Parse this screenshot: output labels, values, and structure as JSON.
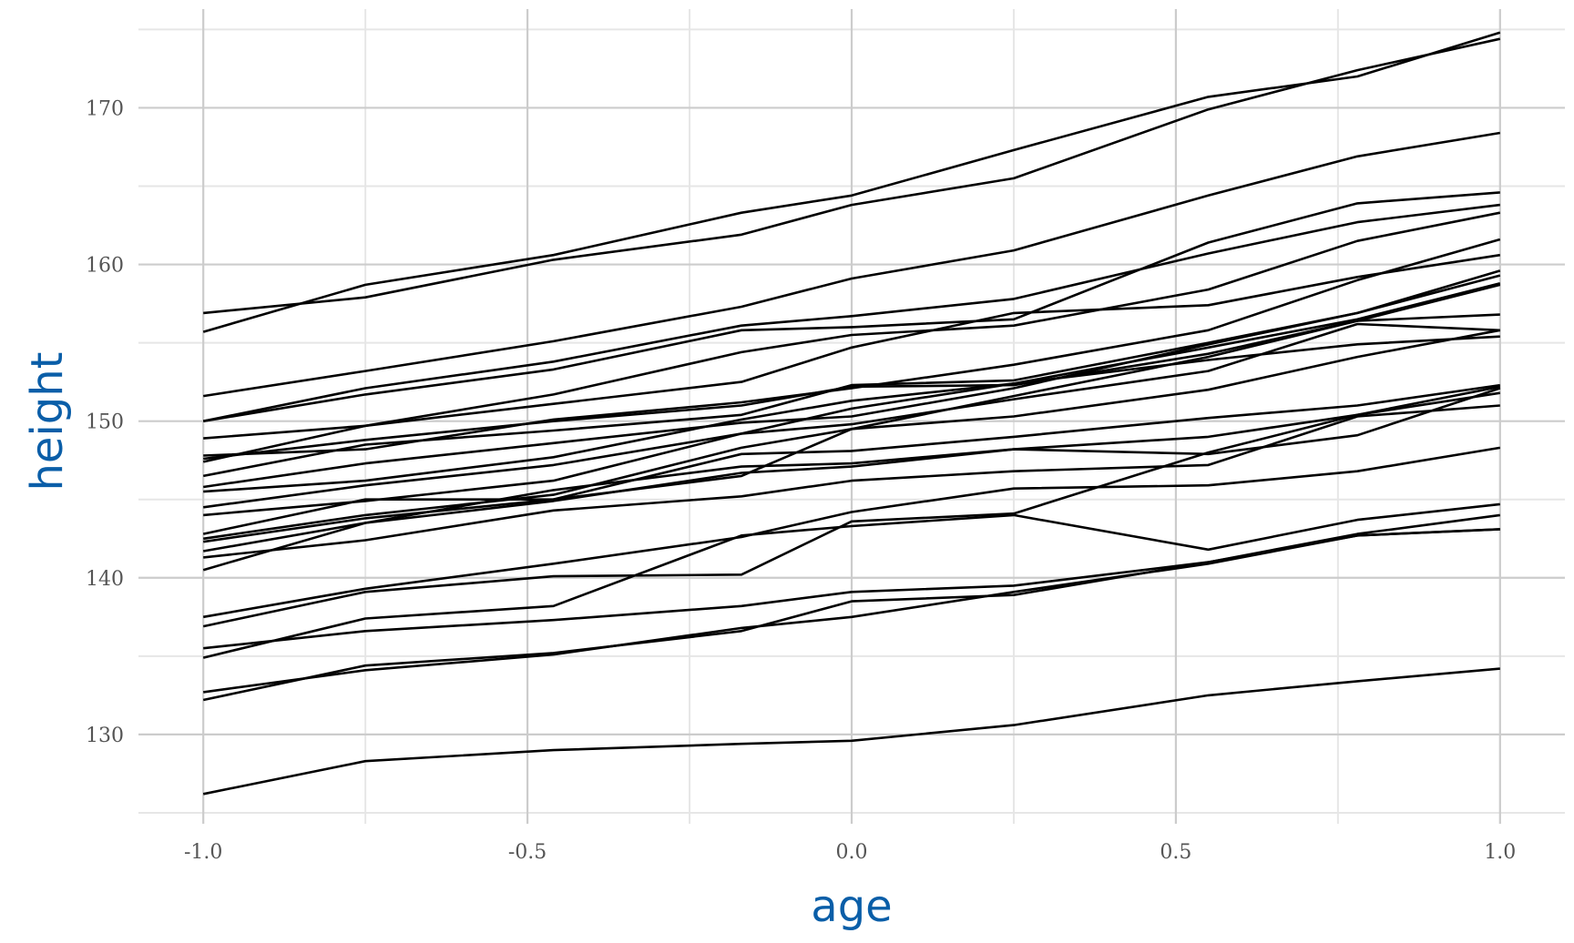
{
  "chart_data": {
    "type": "line",
    "xlabel": "age",
    "ylabel": "height",
    "xlim": [
      -1.1,
      1.1
    ],
    "ylim": [
      124.3,
      176.3
    ],
    "x_ticks": [
      -1.0,
      -0.5,
      0.0,
      0.5,
      1.0
    ],
    "x_tick_labels": [
      "-1.0",
      "-0.5",
      "0.0",
      "0.5",
      "1.0"
    ],
    "y_ticks": [
      130,
      140,
      150,
      160,
      170
    ],
    "y_tick_labels": [
      "130",
      "140",
      "150",
      "160",
      "170"
    ],
    "grid": true,
    "legend": "none",
    "colors": {
      "line": "#000000",
      "axis_title": "#0a5ea8",
      "tick_label": "#555555",
      "grid_major": "#cccccc",
      "grid_minor": "#e6e6e6"
    },
    "series": [
      {
        "x": [
          -1.0,
          -0.75,
          -0.46,
          -0.17,
          0.0,
          0.25,
          0.55,
          0.78,
          1.0
        ],
        "y": [
          156.9,
          157.9,
          160.3,
          161.9,
          163.8,
          165.5,
          169.9,
          172.4,
          174.4
        ]
      },
      {
        "x": [
          -1.0,
          -0.75,
          -0.46,
          -0.17,
          0.0,
          0.25,
          0.55,
          0.78,
          1.0
        ],
        "y": [
          155.7,
          158.7,
          160.6,
          163.3,
          164.4,
          167.3,
          170.7,
          172.0,
          174.8
        ]
      },
      {
        "x": [
          -1.0,
          -0.75,
          -0.46,
          -0.17,
          0.0,
          0.25,
          0.55,
          0.78,
          1.0
        ],
        "y": [
          151.6,
          153.2,
          155.1,
          157.3,
          159.1,
          160.9,
          164.4,
          166.9,
          168.4
        ]
      },
      {
        "x": [
          -1.0,
          -0.75,
          -0.46,
          -0.17,
          0.0,
          0.25,
          0.55,
          0.78,
          1.0
        ],
        "y": [
          150.0,
          152.1,
          153.8,
          156.1,
          156.7,
          157.8,
          160.7,
          162.7,
          163.8
        ]
      },
      {
        "x": [
          -1.0,
          -0.75,
          -0.46,
          -0.17,
          0.0,
          0.25,
          0.55,
          0.78,
          1.0
        ],
        "y": [
          150.0,
          151.7,
          153.3,
          155.8,
          156.0,
          156.5,
          161.4,
          163.9,
          164.6
        ]
      },
      {
        "x": [
          -1.0,
          -0.75,
          -0.46,
          -0.17,
          0.0,
          0.25,
          0.55,
          0.78,
          1.0
        ],
        "y": [
          148.9,
          149.7,
          151.7,
          154.4,
          155.5,
          156.1,
          158.4,
          161.5,
          163.3
        ]
      },
      {
        "x": [
          -1.0,
          -0.75,
          -0.46,
          -0.17,
          0.0,
          0.25,
          0.55,
          0.78,
          1.0
        ],
        "y": [
          147.4,
          149.7,
          151.1,
          152.5,
          154.7,
          156.9,
          157.4,
          159.2,
          160.6
        ]
      },
      {
        "x": [
          -1.0,
          -0.75,
          -0.46,
          -0.17,
          0.0,
          0.25,
          0.55,
          0.78,
          1.0
        ],
        "y": [
          147.8,
          148.2,
          150.1,
          151.2,
          152.1,
          153.6,
          155.8,
          159.0,
          161.6
        ]
      },
      {
        "x": [
          -1.0,
          -0.75,
          -0.46,
          -0.17,
          0.0,
          0.25,
          0.55,
          0.78,
          1.0
        ],
        "y": [
          147.6,
          148.8,
          150.0,
          151.0,
          152.2,
          152.3,
          154.3,
          156.4,
          156.8
        ]
      },
      {
        "x": [
          -1.0,
          -0.75,
          -0.46,
          -0.17,
          0.0,
          0.25,
          0.55,
          0.78,
          1.0
        ],
        "y": [
          146.5,
          148.5,
          149.4,
          150.4,
          152.3,
          152.6,
          155.0,
          156.9,
          159.6
        ]
      },
      {
        "x": [
          -1.0,
          -0.75,
          -0.46,
          -0.17,
          0.0,
          0.25,
          0.55,
          0.78,
          1.0
        ],
        "y": [
          145.8,
          147.3,
          148.6,
          149.9,
          150.3,
          152.1,
          154.9,
          156.9,
          159.3
        ]
      },
      {
        "x": [
          -1.0,
          -0.75,
          -0.46,
          -0.17,
          0.0,
          0.25,
          0.55,
          0.78,
          1.0
        ],
        "y": [
          145.5,
          146.2,
          147.7,
          150.1,
          151.3,
          152.4,
          153.9,
          154.9,
          155.4
        ]
      },
      {
        "x": [
          -1.0,
          -0.75,
          -0.46,
          -0.17,
          0.0,
          0.25,
          0.55,
          0.78,
          1.0
        ],
        "y": [
          144.5,
          145.9,
          147.2,
          149.2,
          149.8,
          151.4,
          153.2,
          156.2,
          155.8
        ]
      },
      {
        "x": [
          -1.0,
          -0.75,
          -0.46,
          -0.17,
          0.0,
          0.25,
          0.55,
          0.78,
          1.0
        ],
        "y": [
          144.0,
          144.9,
          146.2,
          149.2,
          150.8,
          152.4,
          154.7,
          156.5,
          158.8
        ]
      },
      {
        "x": [
          -1.0,
          -0.75,
          -0.46,
          -0.17,
          0.0,
          0.25,
          0.55,
          0.78,
          1.0
        ],
        "y": [
          142.8,
          145.0,
          145.0,
          146.5,
          149.5,
          151.6,
          154.1,
          156.4,
          158.7
        ]
      },
      {
        "x": [
          -1.0,
          -0.75,
          -0.46,
          -0.17,
          0.0,
          0.25,
          0.55,
          0.78,
          1.0
        ],
        "y": [
          142.5,
          144.0,
          145.3,
          148.3,
          149.5,
          150.3,
          152.0,
          154.1,
          155.8
        ]
      },
      {
        "x": [
          -1.0,
          -0.75,
          -0.46,
          -0.17,
          0.0,
          0.25,
          0.55,
          0.78,
          1.0
        ],
        "y": [
          142.3,
          143.8,
          145.0,
          147.9,
          148.1,
          149.0,
          150.2,
          151.0,
          152.3
        ]
      },
      {
        "x": [
          -1.0,
          -0.75,
          -0.46,
          -0.17,
          0.0,
          0.25,
          0.55,
          0.78,
          1.0
        ],
        "y": [
          141.7,
          143.5,
          145.6,
          147.1,
          147.3,
          148.2,
          149.0,
          150.4,
          151.8
        ]
      },
      {
        "x": [
          -1.0,
          -0.75,
          -0.46,
          -0.17,
          0.0,
          0.25,
          0.55,
          0.78,
          1.0
        ],
        "y": [
          140.5,
          143.5,
          144.9,
          146.7,
          147.1,
          148.2,
          147.9,
          149.1,
          152.1
        ]
      },
      {
        "x": [
          -1.0,
          -0.75,
          -0.46,
          -0.17,
          0.0,
          0.25,
          0.55,
          0.78,
          1.0
        ],
        "y": [
          141.3,
          142.4,
          144.3,
          145.2,
          146.2,
          146.8,
          147.2,
          150.3,
          151.0
        ]
      },
      {
        "x": [
          -1.0,
          -0.75,
          -0.46,
          -0.17,
          0.0,
          0.25,
          0.55,
          0.78,
          1.0
        ],
        "y": [
          137.5,
          139.3,
          140.9,
          142.6,
          144.2,
          145.7,
          145.9,
          146.8,
          148.3
        ]
      },
      {
        "x": [
          -1.0,
          -0.75,
          -0.46,
          -0.17,
          0.0,
          0.25,
          0.55,
          0.78,
          1.0
        ],
        "y": [
          136.9,
          139.1,
          140.1,
          140.2,
          143.6,
          144.1,
          148.0,
          150.4,
          152.2
        ]
      },
      {
        "x": [
          -1.0,
          -0.75,
          -0.46,
          -0.17,
          0.0,
          0.25,
          0.55,
          0.78,
          1.0
        ],
        "y": [
          135.5,
          136.6,
          137.3,
          138.2,
          139.1,
          139.5,
          141.0,
          142.7,
          143.1
        ]
      },
      {
        "x": [
          -1.0,
          -0.75,
          -0.46,
          -0.17,
          0.0,
          0.25,
          0.55,
          0.78,
          1.0
        ],
        "y": [
          134.9,
          137.4,
          138.2,
          142.7,
          143.3,
          144.0,
          141.8,
          143.7,
          144.7
        ]
      },
      {
        "x": [
          -1.0,
          -0.75,
          -0.46,
          -0.17,
          0.0,
          0.25,
          0.55,
          0.78,
          1.0
        ],
        "y": [
          132.2,
          134.4,
          135.2,
          136.6,
          138.5,
          138.9,
          141.0,
          142.8,
          144.0
        ]
      },
      {
        "x": [
          -1.0,
          -0.75,
          -0.46,
          -0.17,
          0.0,
          0.25,
          0.55,
          0.78,
          1.0
        ],
        "y": [
          132.7,
          134.1,
          135.1,
          136.8,
          137.5,
          139.1,
          140.9,
          142.7,
          143.1
        ]
      },
      {
        "x": [
          -1.0,
          -0.75,
          -0.46,
          -0.17,
          0.0,
          0.25,
          0.55,
          0.78,
          1.0
        ],
        "y": [
          126.2,
          128.3,
          129.0,
          129.4,
          129.6,
          130.6,
          132.5,
          133.4,
          134.2
        ]
      }
    ]
  }
}
